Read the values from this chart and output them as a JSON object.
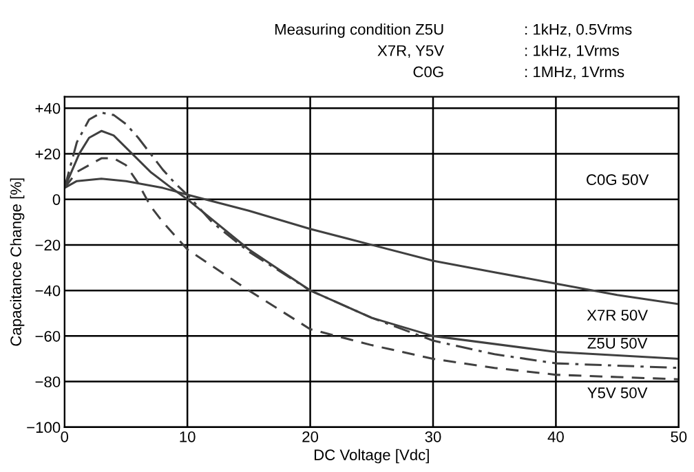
{
  "chart_data": {
    "type": "line",
    "xlabel": "DC Voltage [Vdc]",
    "ylabel": "Capacitance Change [%]",
    "xlim": [
      0,
      50
    ],
    "xticks": [
      0,
      10,
      20,
      30,
      40,
      50
    ],
    "ylim": [
      -100,
      45
    ],
    "yticks": [
      {
        "value": -100,
        "label": "−100"
      },
      {
        "value": -80,
        "label": "−80"
      },
      {
        "value": -60,
        "label": "−60"
      },
      {
        "value": -40,
        "label": "−40"
      },
      {
        "value": -20,
        "label": "−20"
      },
      0,
      {
        "value": 20,
        "label": "+20"
      },
      {
        "value": 40,
        "label": "+40"
      }
    ],
    "grid": true,
    "legend": false,
    "marker": "none",
    "series": [
      {
        "color": "#404040",
        "line_style": "solid",
        "x": [
          0,
          1,
          3,
          5,
          8,
          10,
          15,
          20,
          25,
          30,
          35,
          40,
          45,
          50
        ],
        "values": [
          5,
          8,
          9,
          8,
          5,
          2,
          -5,
          -13,
          -20,
          -27,
          -32,
          -37,
          -42,
          -46
        ]
      },
      {
        "color": "#404040",
        "line_style": "solid",
        "x": [
          0,
          1.2,
          2,
          3,
          4,
          5.5,
          7,
          8.7,
          10,
          15,
          20,
          25,
          30,
          40,
          50
        ],
        "values": [
          5,
          20,
          27,
          30,
          28,
          20,
          12,
          5,
          0,
          -22,
          -40,
          -52,
          -60,
          -67,
          -70
        ]
      },
      {
        "color": "#404040",
        "line_style": "dashdot",
        "x": [
          0,
          1,
          2,
          3,
          4,
          5,
          6,
          7,
          8,
          9,
          10,
          12,
          15,
          20,
          25,
          30,
          35,
          40,
          45,
          50
        ],
        "values": [
          5,
          25,
          35,
          38,
          37,
          33,
          27,
          20,
          13,
          7,
          2,
          -10,
          -23,
          -40,
          -52,
          -62,
          -68,
          -72,
          -73,
          -74
        ]
      },
      {
        "color": "#404040",
        "line_style": "dashed",
        "x": [
          0,
          1,
          3,
          4,
          5,
          6,
          7,
          8,
          10,
          15,
          20,
          25,
          30,
          35,
          40,
          45,
          50
        ],
        "values": [
          5,
          12,
          18,
          18,
          15,
          7,
          -3,
          -10,
          -22,
          -40,
          -57,
          -64,
          -70,
          -74,
          -77,
          -78,
          -79
        ]
      }
    ],
    "annotations": [
      "C0G 50V",
      "X7R 50V",
      "Z5U 50V",
      "Y5V 50V",
      "Measuring condition Z5U",
      "X7R, Y5V",
      "C0G",
      ": 1kHz, 0.5Vrms",
      ": 1kHz, 1Vrms",
      ": 1MHz, 1Vrms"
    ]
  }
}
